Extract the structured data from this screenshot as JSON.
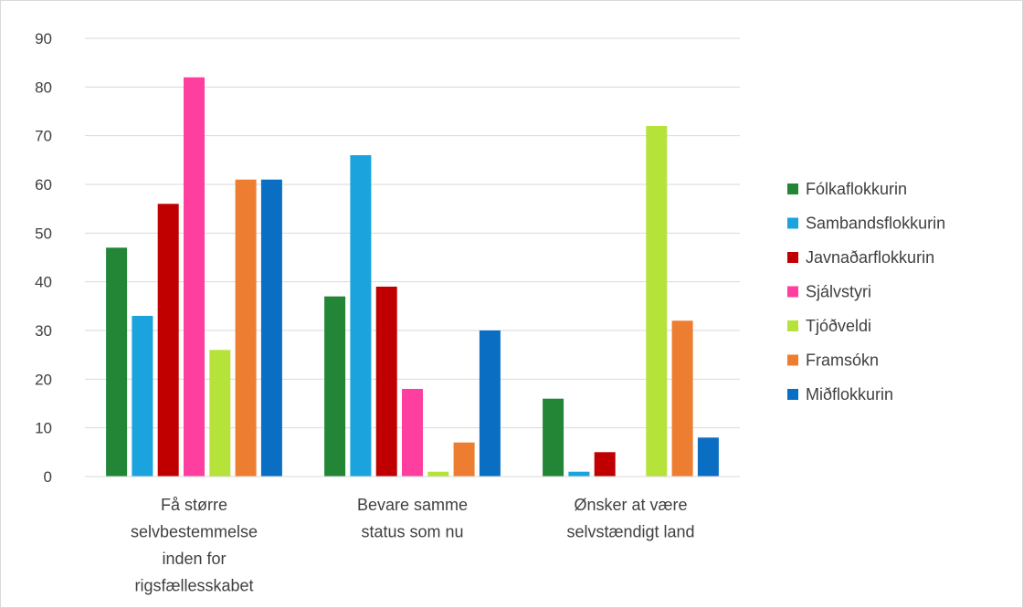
{
  "chart_data": {
    "type": "bar",
    "title": "",
    "xlabel": "",
    "ylabel": "",
    "ylim": [
      0,
      90
    ],
    "yticks": [
      0,
      10,
      20,
      30,
      40,
      50,
      60,
      70,
      80,
      90
    ],
    "grid": true,
    "legend_position": "right",
    "categories": [
      [
        "Få større",
        "selvbestemmelse",
        "inden for",
        "rigsfællesskabet"
      ],
      [
        "Bevare samme",
        "status som nu"
      ],
      [
        "Ønsker at være",
        "selvstændigt land"
      ]
    ],
    "series": [
      {
        "name": "Fólkaflokkurin",
        "color": "#238636",
        "values": [
          47,
          37,
          16
        ]
      },
      {
        "name": "Sambandsflokkurin",
        "color": "#1aa3dc",
        "values": [
          33,
          66,
          1
        ]
      },
      {
        "name": "Javnaðarflokkurin",
        "color": "#c00000",
        "values": [
          56,
          39,
          5
        ]
      },
      {
        "name": "Sjálvstyri",
        "color": "#ff3fa0",
        "values": [
          82,
          18,
          0
        ]
      },
      {
        "name": "Tjóðveldi",
        "color": "#b6e33a",
        "values": [
          26,
          1,
          72
        ]
      },
      {
        "name": "Framsókn",
        "color": "#ed7d31",
        "values": [
          61,
          7,
          32
        ]
      },
      {
        "name": "Miðflokkurin",
        "color": "#0a6fc2",
        "values": [
          61,
          30,
          8
        ]
      }
    ]
  }
}
